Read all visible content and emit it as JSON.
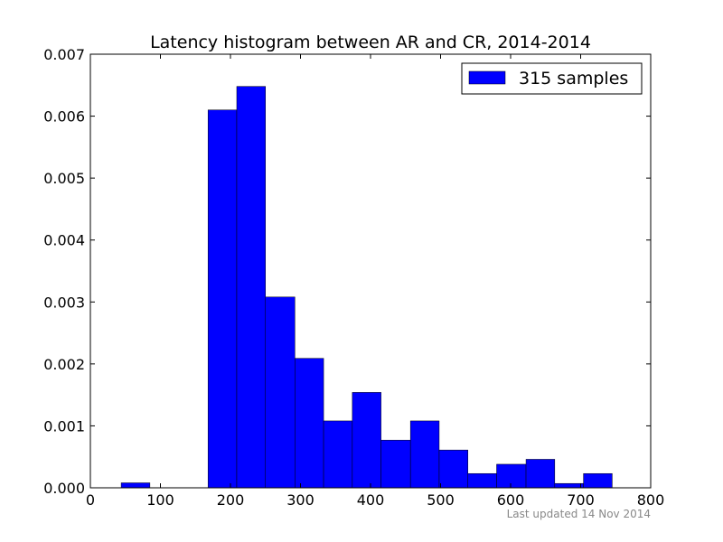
{
  "chart_data": {
    "type": "bar",
    "title": "Latency histogram between AR and CR, 2014-2014",
    "xlabel": "",
    "ylabel": "",
    "xlim": [
      0,
      800
    ],
    "ylim": [
      0,
      0.007
    ],
    "xticks": [
      0,
      100,
      200,
      300,
      400,
      500,
      600,
      700,
      800
    ],
    "yticks": [
      "0.000",
      "0.001",
      "0.002",
      "0.003",
      "0.004",
      "0.005",
      "0.006",
      "0.007"
    ],
    "grid": false,
    "legend_position": "top-right",
    "bin_edges": [
      44,
      85,
      126,
      168,
      209,
      250,
      292,
      333,
      374,
      415,
      457,
      498,
      539,
      580,
      622,
      663,
      704,
      745
    ],
    "values": [
      8e-05,
      0,
      0,
      0.0061,
      0.00648,
      0.00308,
      0.00209,
      0.00108,
      0.00154,
      0.00077,
      0.00108,
      0.00061,
      0.00023,
      0.00038,
      0.00046,
      7e-05,
      0.00023
    ],
    "series": [
      {
        "name": "315 samples",
        "color": "#0000ff"
      }
    ]
  },
  "footer": {
    "updated_text": "Last updated 14 Nov 2014"
  }
}
